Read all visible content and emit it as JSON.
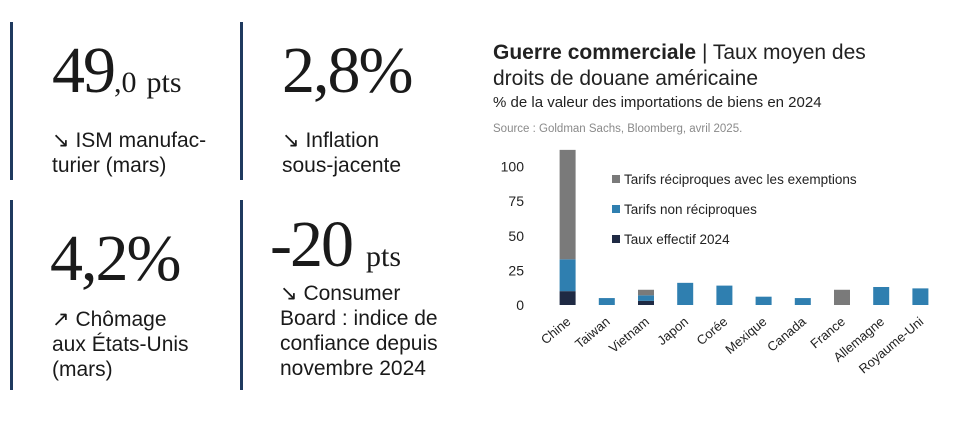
{
  "kpis": [
    {
      "value": "49",
      "value_small": ",0",
      "unit": "pts",
      "arrow": "↘",
      "label_lines": [
        "ISM manufac-",
        "turier (mars)"
      ]
    },
    {
      "value": "2,8%",
      "value_small": "",
      "unit": "",
      "arrow": "↘",
      "label_lines": [
        "Inflation",
        "sous-jacente"
      ]
    },
    {
      "value": "4,2%",
      "value_small": "",
      "unit": "",
      "arrow": "↗",
      "label_lines": [
        "Chômage",
        "aux États-Unis",
        "(mars)"
      ]
    },
    {
      "value": "-20",
      "value_small": "",
      "unit": "pts",
      "arrow": "↘",
      "label_lines": [
        "Consumer",
        "Board : indice de",
        "confiance depuis",
        "novembre 2024"
      ]
    }
  ],
  "chart_data": {
    "type": "bar",
    "title_bold": "Guerre commerciale",
    "title_rest": " | Taux moyen des",
    "title_line2": "droits de douane américaine",
    "subtitle": "% de la valeur des importations de biens en 2024",
    "source": "Source : Goldman Sachs, Bloomberg, avril 2025.",
    "categories": [
      "Chine",
      "Taiwan",
      "Vietnam",
      "Japon",
      "Corée",
      "Mexique",
      "Canada",
      "France",
      "Allemagne",
      "Royaume-Uni"
    ],
    "stacked": true,
    "series": [
      {
        "name": "Taux effectif 2024",
        "color": "#1f2a44",
        "values": [
          10,
          0,
          3,
          0,
          0,
          0,
          0,
          0,
          0,
          0
        ]
      },
      {
        "name": "Tarifs non réciproques",
        "color": "#2f7fb0",
        "values": [
          23,
          5,
          4,
          16,
          14,
          6,
          5,
          0,
          13,
          12
        ]
      },
      {
        "name": "Tarifs réciproques avec les exemptions",
        "color": "#7a7a7a",
        "values": [
          79,
          0,
          4,
          0,
          0,
          0,
          0,
          11,
          0,
          0
        ]
      }
    ],
    "yticks": [
      0,
      25,
      50,
      75,
      100
    ],
    "ylim": [
      0,
      112
    ],
    "legend_order": [
      "Tarifs réciproques avec les exemptions",
      "Tarifs non réciproques",
      "Taux effectif 2024"
    ],
    "legend_position": "top-right",
    "grid": false
  }
}
